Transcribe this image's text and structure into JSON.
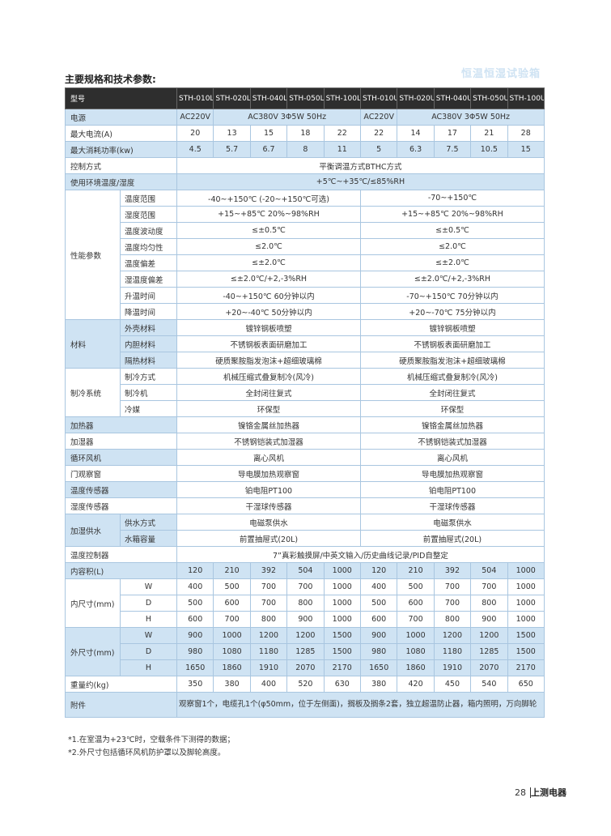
{
  "header": {
    "title": "主要规格和技术参数:",
    "category": "恒温恒湿试验箱"
  },
  "table": {
    "header": [
      "型号",
      "STH-010L",
      "STH-020L",
      "STH-040L",
      "STH-050L",
      "STH-100L",
      "STH-010U",
      "STH-020U",
      "STH-040U",
      "STH-050U",
      "STH-100U"
    ],
    "rows": [
      {
        "label": "电源",
        "cells": [
          "AC220V",
          "AC380V 3Φ5W 50Hz",
          "AC220V",
          "AC380V 3Φ5W 50Hz"
        ]
      },
      {
        "label": "最大电流(A)",
        "cells": [
          20,
          13,
          15,
          18,
          22,
          22,
          14,
          17,
          21,
          28
        ]
      },
      {
        "label": "最大消耗功率(kw)",
        "cells": [
          4.5,
          5.7,
          6.7,
          8,
          11,
          5,
          6.3,
          7.5,
          10.5,
          15
        ]
      },
      {
        "label": "控制方式",
        "cells": [
          "平衡调温方式BTHC方式"
        ]
      },
      {
        "label": "使用环境温度/湿度",
        "cells": [
          "+5℃~+35℃/≤85%RH"
        ]
      },
      {
        "label": "性能参数",
        "sub": [
          {
            "label": "温度范围",
            "cells": [
              "-40~+150℃ (-20~+150℃可选)",
              "-70~+150℃"
            ]
          },
          {
            "label": "湿度范围",
            "cells": [
              "+15~+85℃ 20%~98%RH",
              "+15~+85℃ 20%~98%RH"
            ]
          },
          {
            "label": "温度波动度",
            "cells": [
              "≤±0.5℃",
              "≤±0.5℃"
            ]
          },
          {
            "label": "温度均匀性",
            "cells": [
              "≤2.0℃",
              "≤2.0℃"
            ]
          },
          {
            "label": "温度偏差",
            "cells": [
              "≤±2.0℃",
              "≤±2.0℃"
            ]
          },
          {
            "label": "湿温度偏差",
            "cells": [
              "≤±2.0℃/+2,-3%RH",
              "≤±2.0℃/+2,-3%RH"
            ]
          },
          {
            "label": "升温时间",
            "cells": [
              "-40~+150℃ 60分钟以内",
              "-70~+150℃ 70分钟以内"
            ]
          },
          {
            "label": "降温时间",
            "cells": [
              "+20~-40℃ 50分钟以内",
              "+20~-70℃ 75分钟以内"
            ]
          }
        ]
      },
      {
        "label": "材料",
        "sub": [
          {
            "label": "外壳材料",
            "cells": [
              "镀锌钢板喷塑",
              "镀锌钢板喷塑"
            ]
          },
          {
            "label": "内胆材料",
            "cells": [
              "不锈钢板表面研磨加工",
              "不锈钢板表面研磨加工"
            ]
          },
          {
            "label": "隔热材料",
            "cells": [
              "硬质聚胺脂发泡沫+超细玻璃棉",
              "硬质聚胺脂发泡沫+超细玻璃棉"
            ]
          }
        ]
      },
      {
        "label": "制冷系统",
        "sub": [
          {
            "label": "制冷方式",
            "cells": [
              "机械压缩式叠复制冷(风冷)",
              "机械压缩式叠复制冷(风冷)"
            ]
          },
          {
            "label": "制冷机",
            "cells": [
              "全封闭往复式",
              "全封闭往复式"
            ]
          },
          {
            "label": "冷媒",
            "cells": [
              "环保型",
              "环保型"
            ]
          }
        ]
      },
      {
        "label": "加热器",
        "cells": [
          "镍铬金属丝加热器",
          "镍铬金属丝加热器"
        ]
      },
      {
        "label": "加湿器",
        "cells": [
          "不锈钢铠装式加湿器",
          "不锈钢铠装式加湿器"
        ]
      },
      {
        "label": "循环风机",
        "cells": [
          "离心风机",
          "离心风机"
        ]
      },
      {
        "label": "门观察窗",
        "cells": [
          "导电膜加热观察窗",
          "导电膜加热观察窗"
        ]
      },
      {
        "label": "温度传感器",
        "cells": [
          "铂电阻PT100",
          "铂电阻PT100"
        ]
      },
      {
        "label": "湿度传感器",
        "cells": [
          "干湿球传感器",
          "干湿球传感器"
        ]
      },
      {
        "label": "加湿供水",
        "sub": [
          {
            "label": "供水方式",
            "cells": [
              "电磁泵供水",
              "电磁泵供水"
            ]
          },
          {
            "label": "水箱容量",
            "cells": [
              "前置抽屉式(20L)",
              "前置抽屉式(20L)"
            ]
          }
        ]
      },
      {
        "label": "温度控制器",
        "cells": [
          "7”真彩触摸屏/中英文输入/历史曲线记录/PID自整定"
        ]
      },
      {
        "label": "内容积(L)",
        "cells": [
          120,
          210,
          392,
          504,
          1000,
          120,
          210,
          392,
          504,
          1000
        ]
      },
      {
        "label": "内尺寸(mm)",
        "sub": [
          {
            "label": "W",
            "cells": [
              400,
              500,
              700,
              700,
              1000,
              400,
              500,
              700,
              700,
              1000
            ]
          },
          {
            "label": "D",
            "cells": [
              500,
              600,
              700,
              800,
              1000,
              500,
              600,
              700,
              800,
              1000
            ]
          },
          {
            "label": "H",
            "cells": [
              600,
              700,
              800,
              900,
              1000,
              600,
              700,
              800,
              900,
              1000
            ]
          }
        ]
      },
      {
        "label": "外尺寸(mm)",
        "sub": [
          {
            "label": "W",
            "cells": [
              900,
              1000,
              1200,
              1200,
              1500,
              900,
              1000,
              1200,
              1200,
              1500
            ]
          },
          {
            "label": "D",
            "cells": [
              980,
              1080,
              1180,
              1285,
              1500,
              980,
              1080,
              1180,
              1285,
              1500
            ]
          },
          {
            "label": "H",
            "cells": [
              1650,
              1860,
              1910,
              2070,
              2170,
              1650,
              1860,
              1910,
              2070,
              2170
            ]
          }
        ]
      },
      {
        "label": "重量约(kg)",
        "cells": [
          350,
          380,
          400,
          520,
          630,
          380,
          420,
          450,
          540,
          650
        ]
      },
      {
        "label": "附件",
        "cells": [
          "观察窗1个，电缆孔1个(φ50mm，位于左侧面)，搁板及搁条2套，独立超温防止器，箱内照明，万向脚轮"
        ]
      }
    ]
  },
  "notes": [
    "*1.在室温为+23℃时，空载条件下测得的数据；",
    "*2.外尺寸包括循环风机防护罩以及脚轮高度。"
  ],
  "footer": {
    "page": "28",
    "brand": "上测电器"
  }
}
